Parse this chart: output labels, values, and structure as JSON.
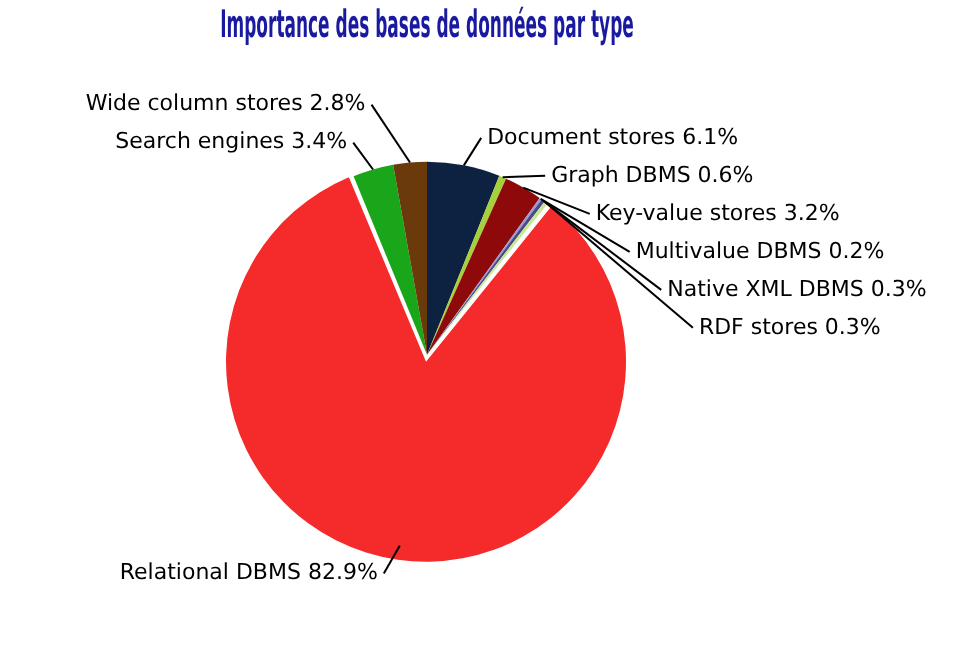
{
  "chart_data": {
    "type": "pie",
    "title": "Importance des bases de données par type",
    "categories": [
      "Document stores",
      "Graph DBMS",
      "Key-value stores",
      "Multivalue DBMS",
      "Native XML DBMS",
      "RDF stores",
      "Relational DBMS",
      "Search engines",
      "Wide column stores"
    ],
    "values": [
      6.1,
      0.6,
      3.2,
      0.2,
      0.3,
      0.3,
      82.9,
      3.4,
      2.8
    ],
    "value_labels": [
      "6.1%",
      "0.6%",
      "3.2%",
      "0.2%",
      "0.3%",
      "0.3%",
      "82.9%",
      "3.4%",
      "2.8%"
    ],
    "colors": [
      "#0d2240",
      "#a6d13a",
      "#8e0a0a",
      "#9a9ad0",
      "#4a4a8a",
      "#c8e890",
      "#f52a2a",
      "#1aa61a",
      "#6a3a0a"
    ],
    "legend": false
  }
}
